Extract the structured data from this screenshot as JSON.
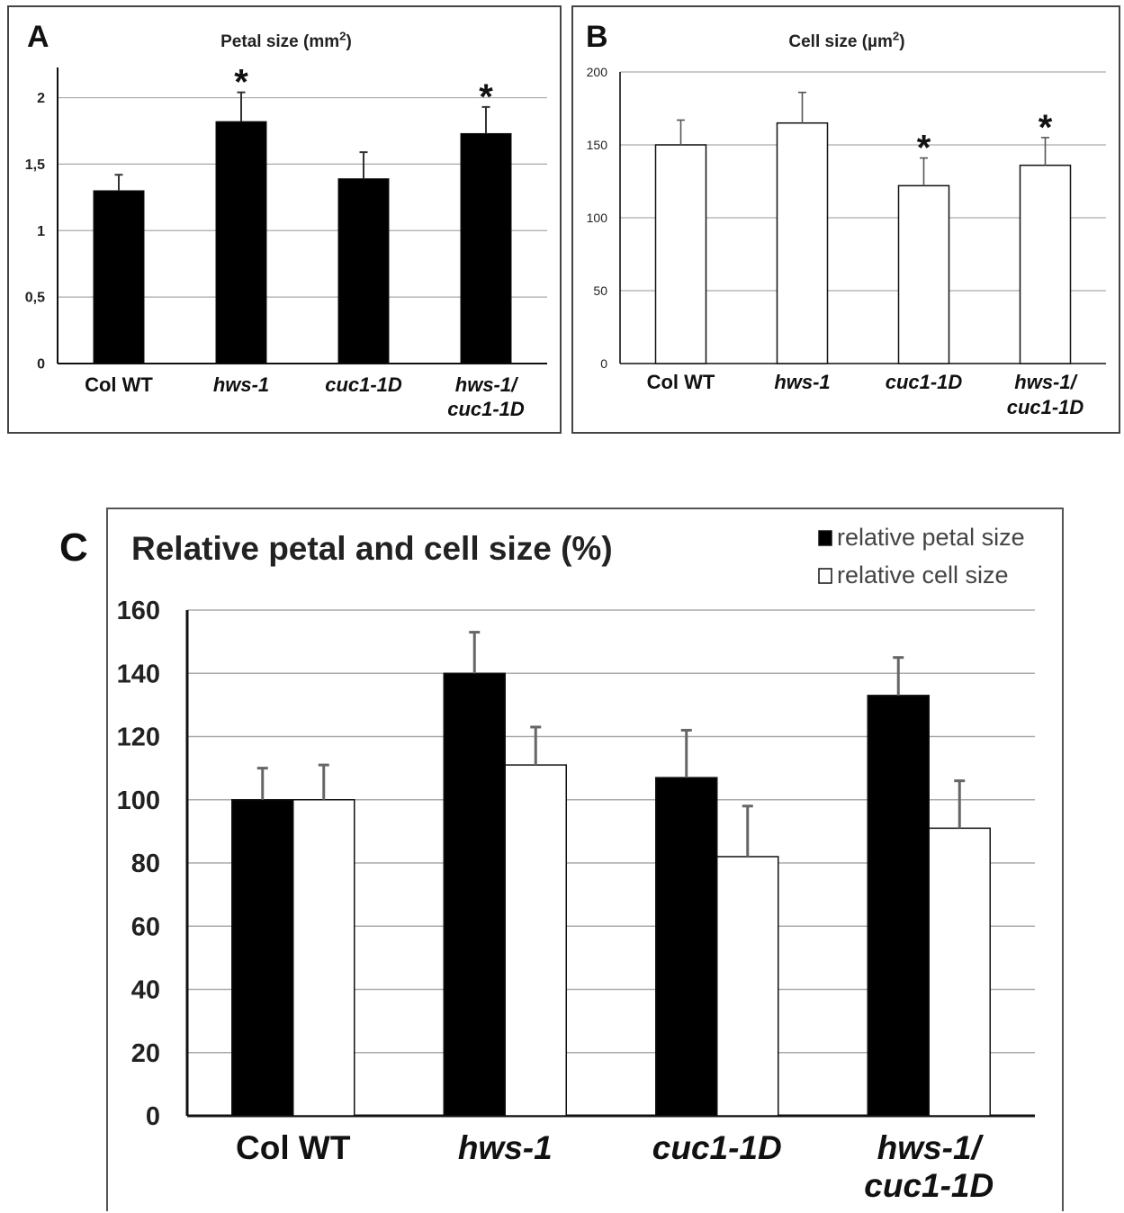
{
  "chart_data": [
    {
      "panel": "A",
      "type": "bar",
      "title": "Petal size (mm",
      "title_sup": "2",
      "title_close": ")",
      "categories": [
        [
          "Col WT"
        ],
        [
          "hws-1"
        ],
        [
          "cuc1-1D"
        ],
        [
          "hws-1/",
          "cuc1-1D"
        ]
      ],
      "italic": [
        false,
        true,
        true,
        true
      ],
      "values": [
        1.3,
        1.82,
        1.39,
        1.73
      ],
      "errors": [
        0.12,
        0.22,
        0.2,
        0.2
      ],
      "significant": [
        false,
        true,
        false,
        true
      ],
      "marker": "*",
      "ylim": [
        0,
        2.2
      ],
      "yticks": [
        0,
        0.5,
        1,
        1.5,
        2
      ],
      "ytick_labels": [
        "0",
        "0,5",
        "1",
        "1,5",
        "2"
      ],
      "bar_color": "#000000",
      "grid": true
    },
    {
      "panel": "B",
      "type": "bar",
      "title": "Cell size (µm",
      "title_sup": "2",
      "title_close": ")",
      "categories": [
        [
          "Col WT"
        ],
        [
          "hws-1"
        ],
        [
          "cuc1-1D"
        ],
        [
          "hws-1/",
          "cuc1-1D"
        ]
      ],
      "italic": [
        false,
        true,
        true,
        true
      ],
      "values": [
        150,
        165,
        122,
        136
      ],
      "errors": [
        17,
        21,
        19,
        19
      ],
      "significant": [
        false,
        false,
        true,
        true
      ],
      "marker": "*",
      "ylim": [
        0,
        200
      ],
      "yticks": [
        0,
        50,
        100,
        150,
        200
      ],
      "ytick_labels": [
        "0",
        "50",
        "100",
        "150",
        "200"
      ],
      "bar_color": "#ffffff",
      "grid": true
    },
    {
      "panel": "C",
      "type": "bar",
      "title": "Relative petal and cell size (%)",
      "categories": [
        [
          "Col WT"
        ],
        [
          "hws-1"
        ],
        [
          "cuc1-1D"
        ],
        [
          "hws-1/",
          "cuc1-1D"
        ]
      ],
      "italic": [
        false,
        true,
        true,
        true
      ],
      "series": [
        {
          "name": "relative petal size",
          "values": [
            100,
            140,
            107,
            133
          ],
          "errors": [
            10,
            13,
            15,
            12
          ],
          "color": "#000000"
        },
        {
          "name": "relative cell size",
          "values": [
            100,
            111,
            82,
            91
          ],
          "errors": [
            11,
            12,
            16,
            15
          ],
          "color": "#ffffff"
        }
      ],
      "ylim": [
        0,
        160
      ],
      "yticks": [
        0,
        20,
        40,
        60,
        80,
        100,
        120,
        140,
        160
      ],
      "ytick_labels": [
        "0",
        "20",
        "40",
        "60",
        "80",
        "100",
        "120",
        "140",
        "160"
      ],
      "legend": "top-right",
      "grid": true
    }
  ],
  "panels": {
    "a": "A",
    "b": "B",
    "c": "C"
  }
}
